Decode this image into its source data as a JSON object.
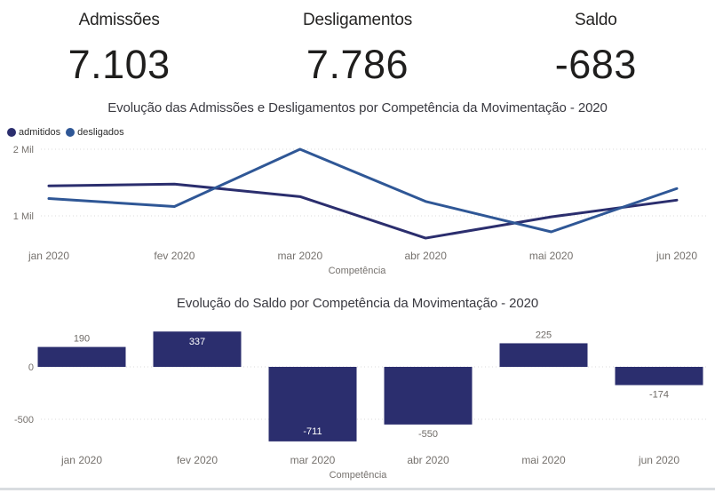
{
  "kpis": [
    {
      "label": "Admissões",
      "value": "7.103"
    },
    {
      "label": "Desligamentos",
      "value": "7.786"
    },
    {
      "label": "Saldo",
      "value": "-683"
    }
  ],
  "colors": {
    "admitidos": "#2B2E6E",
    "desligados": "#2F5796",
    "bar_fill": "#2B2E6E",
    "axis_text": "#75716D",
    "grid_line": "#DBDBDB",
    "title_text": "#3A3A41",
    "label_outside": "#6E6A66",
    "label_inside": "#FFFFFF"
  },
  "chart_data": [
    {
      "type": "line",
      "title": "Evolução das Admissões e Desligamentos por Competência da Movimentação - 2020",
      "categories": [
        "jan 2020",
        "fev 2020",
        "mar 2020",
        "abr 2020",
        "mai 2020",
        "jun 2020"
      ],
      "series": [
        {
          "name": "admitidos",
          "color": "#2B2E6E",
          "values": [
            1450,
            1477,
            1289,
            666,
            985,
            1236
          ]
        },
        {
          "name": "desligados",
          "color": "#2F5796",
          "values": [
            1260,
            1140,
            2000,
            1216,
            760,
            1410
          ]
        }
      ],
      "xlabel": "Competência",
      "y_ticks": [
        {
          "value": 1000,
          "label": "1 Mil"
        },
        {
          "value": 2000,
          "label": "2 Mil"
        }
      ],
      "ylim": [
        600,
        2100
      ],
      "grid": "dotted",
      "legend_position": "top-left"
    },
    {
      "type": "bar",
      "title": "Evolução do Saldo por Competência da Movimentação - 2020",
      "categories": [
        "jan 2020",
        "fev 2020",
        "mar 2020",
        "abr 2020",
        "mai 2020",
        "jun 2020"
      ],
      "values": [
        190,
        337,
        -711,
        -550,
        225,
        -174
      ],
      "data_labels": [
        "190",
        "337",
        "-711",
        "-550",
        "225",
        "-174"
      ],
      "label_inside": [
        false,
        true,
        true,
        false,
        false,
        false
      ],
      "xlabel": "Competência",
      "y_ticks": [
        {
          "value": 0,
          "label": "0"
        },
        {
          "value": -500,
          "label": "-500"
        }
      ],
      "ylim": [
        -800,
        420
      ],
      "grid": "dotted"
    }
  ]
}
